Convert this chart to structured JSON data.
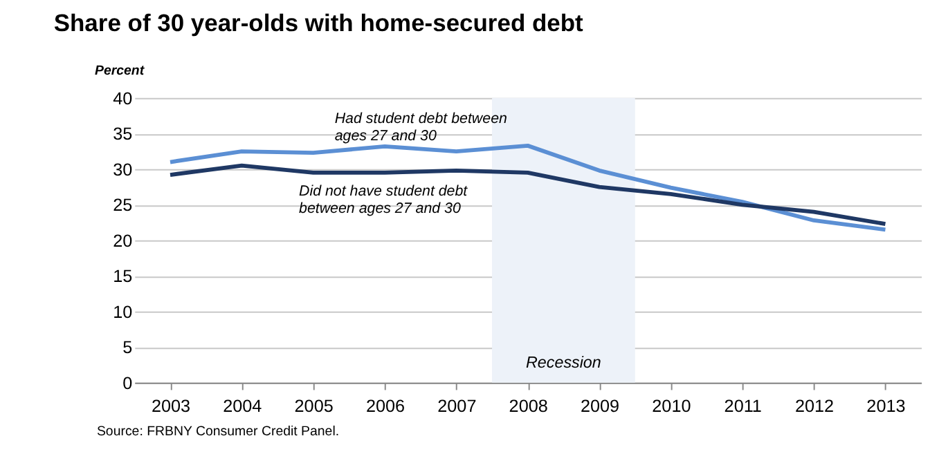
{
  "chart_data": {
    "type": "line",
    "title": "Share of 30 year-olds with home-secured debt",
    "ylabel": "Percent",
    "x": [
      2003,
      2004,
      2005,
      2006,
      2007,
      2008,
      2009,
      2010,
      2011,
      2012,
      2013
    ],
    "xlim": [
      2002.5,
      2013.5
    ],
    "xticks": [
      2003,
      2004,
      2005,
      2006,
      2007,
      2008,
      2009,
      2010,
      2011,
      2012,
      2013
    ],
    "ylim": [
      0,
      40
    ],
    "yticks": [
      0,
      5,
      10,
      15,
      20,
      25,
      30,
      35,
      40
    ],
    "grid": "y",
    "series": [
      {
        "name": "Had student debt between ages 27 and 30",
        "color": "#5b8fd4",
        "values": [
          31,
          32.5,
          32.3,
          33.2,
          32.5,
          33.3,
          29.8,
          27.4,
          25.4,
          22.8,
          21.5
        ]
      },
      {
        "name": "Did not have student debt between ages 27 and 30",
        "color": "#1f3864",
        "values": [
          29.2,
          30.5,
          29.5,
          29.5,
          29.8,
          29.5,
          27.5,
          26.5,
          25,
          24,
          22.3
        ]
      }
    ],
    "bands": [
      {
        "axis": "x",
        "from": 2007.5,
        "to": 2009.5,
        "label": "Recession",
        "color": "#edf2f9"
      }
    ],
    "annotations": [
      "Source: FRBNY Consumer Credit Panel."
    ]
  }
}
